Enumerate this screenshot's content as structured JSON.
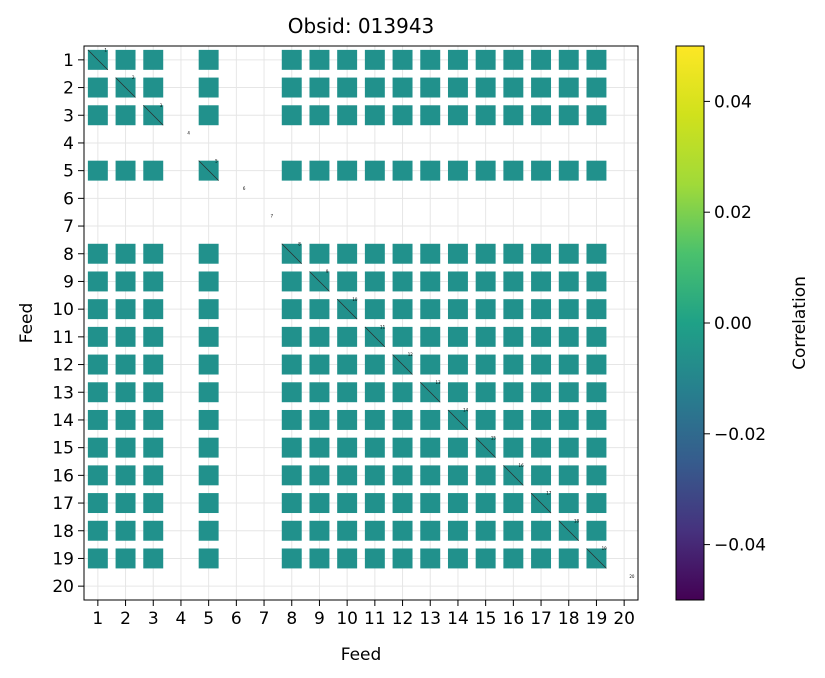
{
  "chart_data": {
    "type": "heatmap",
    "title": "Obsid: 013943",
    "xlabel": "Feed",
    "ylabel": "Feed",
    "x_ticks": [
      "1",
      "2",
      "3",
      "4",
      "5",
      "6",
      "7",
      "8",
      "9",
      "10",
      "11",
      "12",
      "13",
      "14",
      "15",
      "16",
      "17",
      "18",
      "19",
      "20"
    ],
    "y_ticks": [
      "1",
      "2",
      "3",
      "4",
      "5",
      "6",
      "7",
      "8",
      "9",
      "10",
      "11",
      "12",
      "13",
      "14",
      "15",
      "16",
      "17",
      "18",
      "19",
      "20"
    ],
    "xlim": [
      0.5,
      20.5
    ],
    "ylim": [
      0.5,
      20.5
    ],
    "grid": true,
    "colormap": "viridis",
    "colorbar": {
      "label": "Correlation",
      "range": [
        -0.05,
        0.05
      ],
      "ticks": [
        "0.04",
        "0.02",
        "0.00",
        "−0.02",
        "−0.04"
      ],
      "tick_values": [
        0.04,
        0.02,
        0.0,
        -0.02,
        -0.04
      ]
    },
    "cell_value": 0.0,
    "cell_color": "#21918c",
    "active_feeds": [
      1,
      2,
      3,
      5,
      8,
      9,
      10,
      11,
      12,
      13,
      14,
      15,
      16,
      17,
      18,
      19
    ],
    "inactive_feeds": [
      4,
      6,
      7,
      20
    ],
    "diagonal_labels": [
      "1",
      "2",
      "3",
      "4",
      "5",
      "6",
      "7",
      "8",
      "9",
      "10",
      "11",
      "12",
      "13",
      "14",
      "15",
      "16",
      "17",
      "18",
      "19",
      "20"
    ]
  }
}
